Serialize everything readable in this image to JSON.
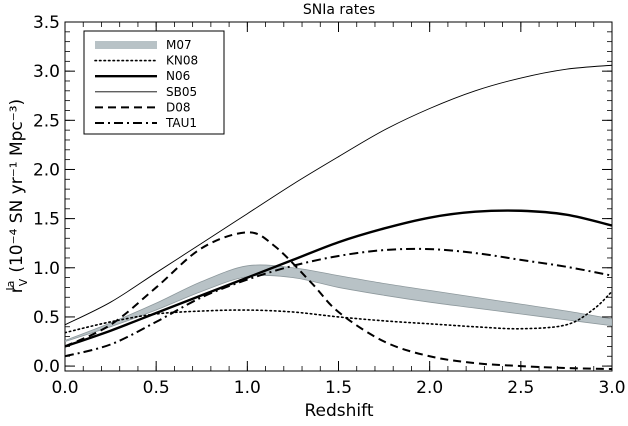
{
  "chart_data": {
    "type": "line",
    "title": "SNIa rates",
    "xlabel": "Redshift",
    "ylabel_main": "r",
    "ylabel_sub": "V",
    "ylabel_sup": "Ia",
    "ylabel_rest": "(10⁻⁴ SN yr⁻¹ Mpc⁻³)",
    "xlim": [
      0,
      3
    ],
    "ylim": [
      -0.05,
      3.5
    ],
    "xticks": [
      "0.0",
      "0.5",
      "1.0",
      "1.5",
      "2.0",
      "2.5",
      "3.0"
    ],
    "yticks": [
      "0.0",
      "0.5",
      "1.0",
      "1.5",
      "2.0",
      "2.5",
      "3.0",
      "3.5"
    ],
    "legend_position": "top-left",
    "band": {
      "name": "M07",
      "color": "#b8c2c6",
      "x": [
        0.0,
        0.25,
        0.5,
        0.75,
        1.0,
        1.25,
        1.5,
        1.75,
        2.0,
        2.25,
        2.5,
        2.75,
        3.0
      ],
      "upper": [
        0.26,
        0.44,
        0.64,
        0.86,
        1.02,
        1.0,
        0.92,
        0.84,
        0.77,
        0.7,
        0.63,
        0.56,
        0.48
      ],
      "lower": [
        0.25,
        0.4,
        0.57,
        0.76,
        0.91,
        0.9,
        0.8,
        0.72,
        0.65,
        0.59,
        0.53,
        0.47,
        0.41
      ]
    },
    "series": [
      {
        "name": "KN08",
        "style": "dotted",
        "x": [
          0.0,
          0.25,
          0.5,
          0.75,
          1.0,
          1.25,
          1.5,
          1.75,
          2.0,
          2.25,
          2.5,
          2.75,
          2.9,
          3.0
        ],
        "values": [
          0.34,
          0.45,
          0.53,
          0.56,
          0.57,
          0.55,
          0.5,
          0.46,
          0.43,
          0.4,
          0.38,
          0.42,
          0.58,
          0.76
        ]
      },
      {
        "name": "N06",
        "style": "thick",
        "x": [
          0.0,
          0.25,
          0.5,
          0.75,
          1.0,
          1.25,
          1.5,
          1.75,
          2.0,
          2.25,
          2.5,
          2.75,
          3.0
        ],
        "values": [
          0.2,
          0.36,
          0.54,
          0.72,
          0.9,
          1.08,
          1.26,
          1.4,
          1.51,
          1.57,
          1.58,
          1.54,
          1.43
        ]
      },
      {
        "name": "SB05",
        "style": "thin",
        "x": [
          0.0,
          0.25,
          0.5,
          0.75,
          1.0,
          1.25,
          1.5,
          1.75,
          2.0,
          2.25,
          2.5,
          2.75,
          3.0
        ],
        "values": [
          0.42,
          0.65,
          0.95,
          1.25,
          1.55,
          1.85,
          2.13,
          2.4,
          2.62,
          2.8,
          2.93,
          3.02,
          3.06
        ]
      },
      {
        "name": "D08",
        "style": "dashed",
        "x": [
          0.0,
          0.25,
          0.5,
          0.75,
          1.0,
          1.15,
          1.35,
          1.5,
          1.75,
          2.0,
          2.25,
          2.5,
          2.75,
          3.0
        ],
        "values": [
          0.2,
          0.42,
          0.8,
          1.2,
          1.36,
          1.22,
          0.85,
          0.55,
          0.25,
          0.1,
          0.03,
          0.0,
          -0.02,
          -0.03
        ]
      },
      {
        "name": "TAU1",
        "style": "dashdot",
        "x": [
          0.0,
          0.25,
          0.5,
          0.75,
          1.0,
          1.25,
          1.5,
          1.75,
          2.0,
          2.25,
          2.5,
          2.75,
          3.0
        ],
        "values": [
          0.1,
          0.22,
          0.45,
          0.7,
          0.88,
          1.02,
          1.12,
          1.18,
          1.19,
          1.15,
          1.08,
          1.01,
          0.92
        ]
      }
    ]
  }
}
